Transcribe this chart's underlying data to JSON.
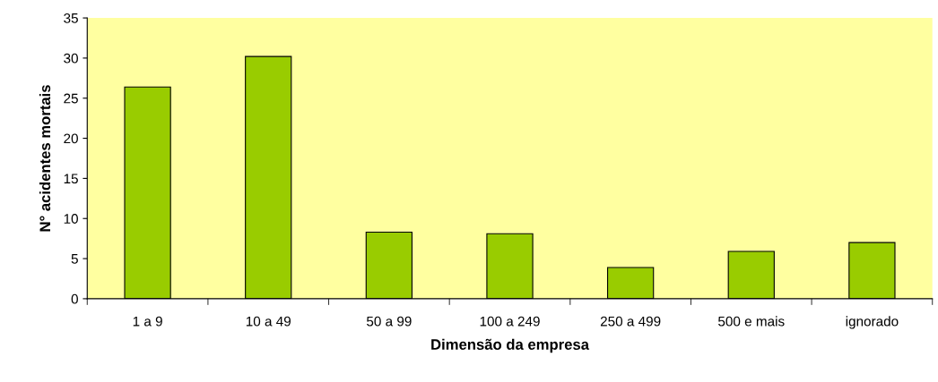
{
  "chart_data": {
    "type": "bar",
    "xlabel": "Dimensão da empresa",
    "ylabel": "N° acidentes mortais",
    "categories": [
      "1 a 9",
      "10 a 49",
      "50 a 99",
      "100 a 249",
      "250 a 499",
      "500 e mais",
      "ignorado"
    ],
    "values": [
      26.4,
      30.2,
      8.3,
      8.1,
      3.9,
      5.9,
      7.0
    ],
    "color": "#99cc00",
    "ylim": [
      0,
      35
    ],
    "yticks": [
      0,
      5,
      10,
      15,
      20,
      25,
      30,
      35
    ],
    "grid": false,
    "legend": false
  }
}
